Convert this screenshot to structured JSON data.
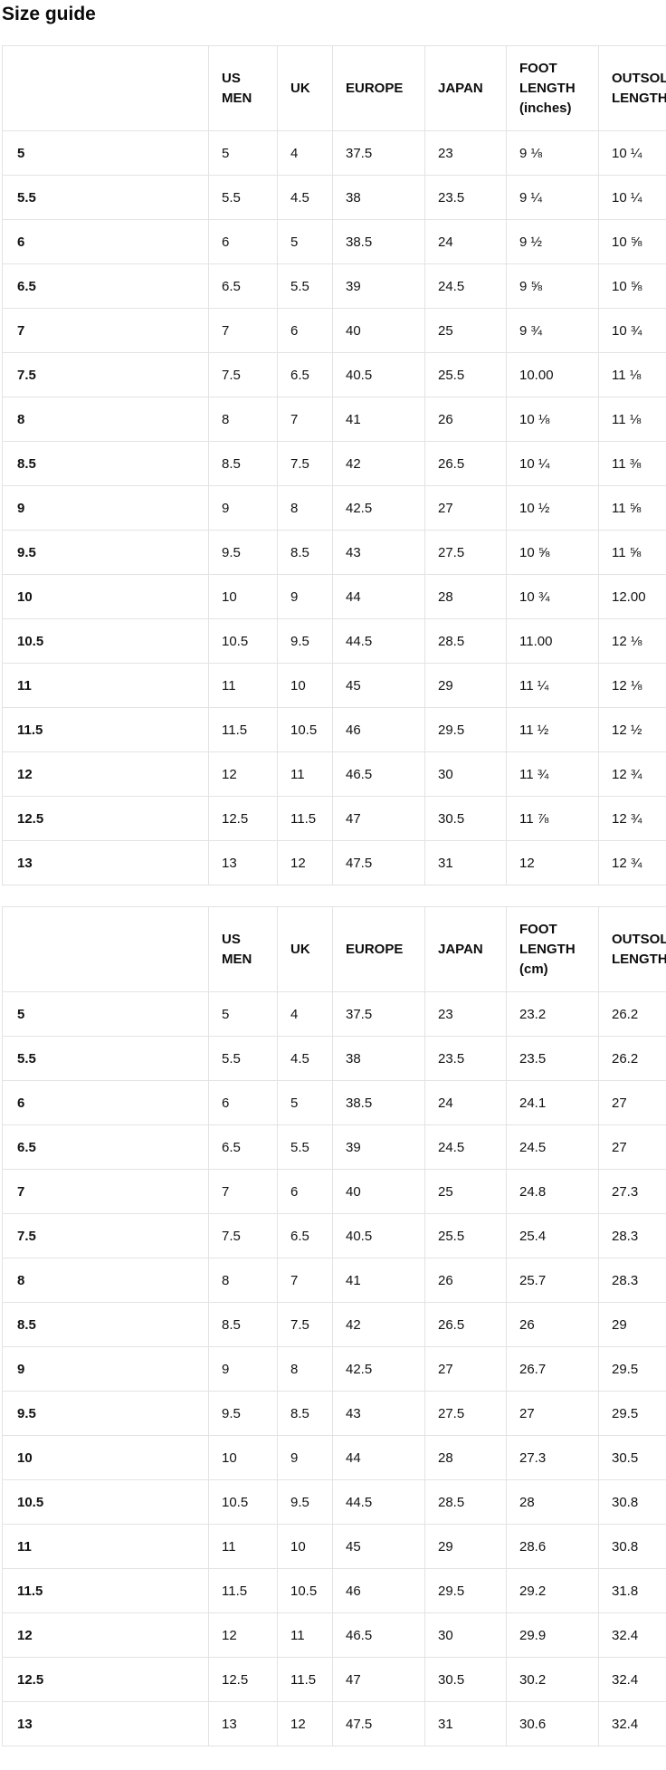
{
  "page": {
    "title": "Size guide"
  },
  "colors": {
    "text": "#121212",
    "border": "#e3e3e3",
    "background": "#ffffff"
  },
  "tables": [
    {
      "name": "inches",
      "headers": [
        "",
        "US MEN",
        "UK",
        "EUROPE",
        "JAPAN",
        "FOOT LENGTH (inches)",
        "OUTSOLE LENGTH (inches)"
      ],
      "rows": [
        [
          "5",
          "5",
          "4",
          "37.5",
          "23",
          "9 ⅛",
          "10 ¼"
        ],
        [
          "5.5",
          "5.5",
          "4.5",
          "38",
          "23.5",
          "9 ¼",
          "10 ¼"
        ],
        [
          "6",
          "6",
          "5",
          "38.5",
          "24",
          "9 ½",
          "10 ⅝"
        ],
        [
          "6.5",
          "6.5",
          "5.5",
          "39",
          "24.5",
          "9 ⅝",
          "10 ⅝"
        ],
        [
          "7",
          "7",
          "6",
          "40",
          "25",
          "9 ¾",
          "10 ¾"
        ],
        [
          "7.5",
          "7.5",
          "6.5",
          "40.5",
          "25.5",
          "10.00",
          "11 ⅛"
        ],
        [
          "8",
          "8",
          "7",
          "41",
          "26",
          "10 ⅛",
          "11 ⅛"
        ],
        [
          "8.5",
          "8.5",
          "7.5",
          "42",
          "26.5",
          "10 ¼",
          "11 ⅜"
        ],
        [
          "9",
          "9",
          "8",
          "42.5",
          "27",
          "10 ½",
          "11 ⅝"
        ],
        [
          "9.5",
          "9.5",
          "8.5",
          "43",
          "27.5",
          "10 ⅝",
          "11 ⅝"
        ],
        [
          "10",
          "10",
          "9",
          "44",
          "28",
          "10 ¾",
          "12.00"
        ],
        [
          "10.5",
          "10.5",
          "9.5",
          "44.5",
          "28.5",
          "11.00",
          "12 ⅛"
        ],
        [
          "11",
          "11",
          "10",
          "45",
          "29",
          "11 ¼",
          "12 ⅛"
        ],
        [
          "11.5",
          "11.5",
          "10.5",
          "46",
          "29.5",
          "11 ½",
          "12 ½"
        ],
        [
          "12",
          "12",
          "11",
          "46.5",
          "30",
          "11 ¾",
          "12 ¾"
        ],
        [
          "12.5",
          "12.5",
          "11.5",
          "47",
          "30.5",
          "11 ⅞",
          "12 ¾"
        ],
        [
          "13",
          "13",
          "12",
          "47.5",
          "31",
          "12",
          "12 ¾"
        ]
      ]
    },
    {
      "name": "cm",
      "headers": [
        "",
        "US MEN",
        "UK",
        "EUROPE",
        "JAPAN",
        "FOOT LENGTH (cm)",
        "OUTSOLE LENGTH (cm)"
      ],
      "rows": [
        [
          "5",
          "5",
          "4",
          "37.5",
          "23",
          "23.2",
          "26.2"
        ],
        [
          "5.5",
          "5.5",
          "4.5",
          "38",
          "23.5",
          "23.5",
          "26.2"
        ],
        [
          "6",
          "6",
          "5",
          "38.5",
          "24",
          "24.1",
          "27"
        ],
        [
          "6.5",
          "6.5",
          "5.5",
          "39",
          "24.5",
          "24.5",
          "27"
        ],
        [
          "7",
          "7",
          "6",
          "40",
          "25",
          "24.8",
          "27.3"
        ],
        [
          "7.5",
          "7.5",
          "6.5",
          "40.5",
          "25.5",
          "25.4",
          "28.3"
        ],
        [
          "8",
          "8",
          "7",
          "41",
          "26",
          "25.7",
          "28.3"
        ],
        [
          "8.5",
          "8.5",
          "7.5",
          "42",
          "26.5",
          "26",
          "29"
        ],
        [
          "9",
          "9",
          "8",
          "42.5",
          "27",
          "26.7",
          "29.5"
        ],
        [
          "9.5",
          "9.5",
          "8.5",
          "43",
          "27.5",
          "27",
          "29.5"
        ],
        [
          "10",
          "10",
          "9",
          "44",
          "28",
          "27.3",
          "30.5"
        ],
        [
          "10.5",
          "10.5",
          "9.5",
          "44.5",
          "28.5",
          "28",
          "30.8"
        ],
        [
          "11",
          "11",
          "10",
          "45",
          "29",
          "28.6",
          "30.8"
        ],
        [
          "11.5",
          "11.5",
          "10.5",
          "46",
          "29.5",
          "29.2",
          "31.8"
        ],
        [
          "12",
          "12",
          "11",
          "46.5",
          "30",
          "29.9",
          "32.4"
        ],
        [
          "12.5",
          "12.5",
          "11.5",
          "47",
          "30.5",
          "30.2",
          "32.4"
        ],
        [
          "13",
          "13",
          "12",
          "47.5",
          "31",
          "30.6",
          "32.4"
        ]
      ]
    }
  ]
}
